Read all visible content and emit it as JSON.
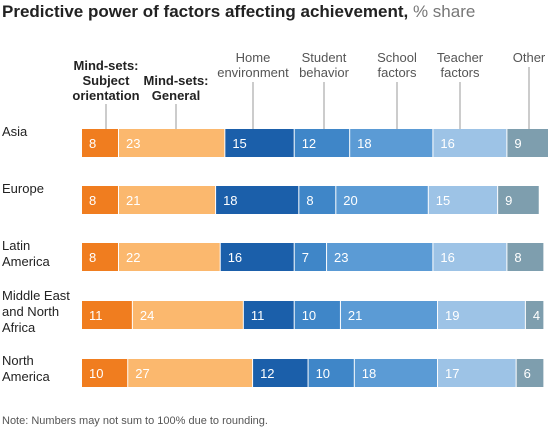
{
  "title": "Predictive power of factors affecting achievement,",
  "title_unit": "% share",
  "note": "Note: Numbers may not sum to 100% due to rounding.",
  "colors": {
    "mindset_subject": "#f07d1f",
    "mindset_general": "#fbb86e",
    "home": "#1b5faa",
    "student": "#3f86c8",
    "school": "#5b9bd5",
    "teacher": "#9dc3e6",
    "other": "#7e9eae"
  },
  "chart_data": {
    "type": "bar",
    "orientation": "horizontal",
    "stacked": true,
    "title": "Predictive power of factors affecting achievement, % share",
    "categories": [
      "Asia",
      "Europe",
      "Latin America",
      "Middle East and North Africa",
      "North America"
    ],
    "category_lines": [
      [
        "Asia"
      ],
      [
        "Europe"
      ],
      [
        "Latin",
        "America"
      ],
      [
        "Middle East",
        "and North",
        "Africa"
      ],
      [
        "North",
        "America"
      ]
    ],
    "series": [
      {
        "name": "Mind-sets: Subject orientation",
        "label_lines": [
          "Mind-sets:",
          "Subject",
          "orientation"
        ],
        "bold": true,
        "color": "#f07d1f",
        "label_color": "#ffffff",
        "values": [
          8,
          8,
          8,
          11,
          10
        ]
      },
      {
        "name": "Mind-sets: General",
        "label_lines": [
          "Mind-sets:",
          "General"
        ],
        "bold": true,
        "color": "#fbb86e",
        "label_color": "#ffffff",
        "values": [
          23,
          21,
          22,
          24,
          27
        ]
      },
      {
        "name": "Home environment",
        "label_lines": [
          "Home",
          "environment"
        ],
        "bold": false,
        "color": "#1b5faa",
        "label_color": "#ffffff",
        "values": [
          15,
          18,
          16,
          11,
          12
        ]
      },
      {
        "name": "Student behavior",
        "label_lines": [
          "Student",
          "behavior"
        ],
        "bold": false,
        "color": "#3f86c8",
        "label_color": "#ffffff",
        "values": [
          12,
          8,
          7,
          10,
          10
        ]
      },
      {
        "name": "School factors",
        "label_lines": [
          "School",
          "factors"
        ],
        "bold": false,
        "color": "#5b9bd5",
        "label_color": "#ffffff",
        "values": [
          18,
          20,
          23,
          21,
          18
        ]
      },
      {
        "name": "Teacher factors",
        "label_lines": [
          "Teacher",
          "factors"
        ],
        "bold": false,
        "color": "#9dc3e6",
        "label_color": "#ffffff",
        "values": [
          16,
          15,
          16,
          19,
          17
        ]
      },
      {
        "name": "Other",
        "label_lines": [
          "Other"
        ],
        "bold": false,
        "color": "#7e9eae",
        "label_color": "#ffffff",
        "values": [
          9,
          9,
          8,
          4,
          6
        ]
      }
    ],
    "xlim": [
      0,
      101
    ],
    "grid": false,
    "legend": "top"
  }
}
